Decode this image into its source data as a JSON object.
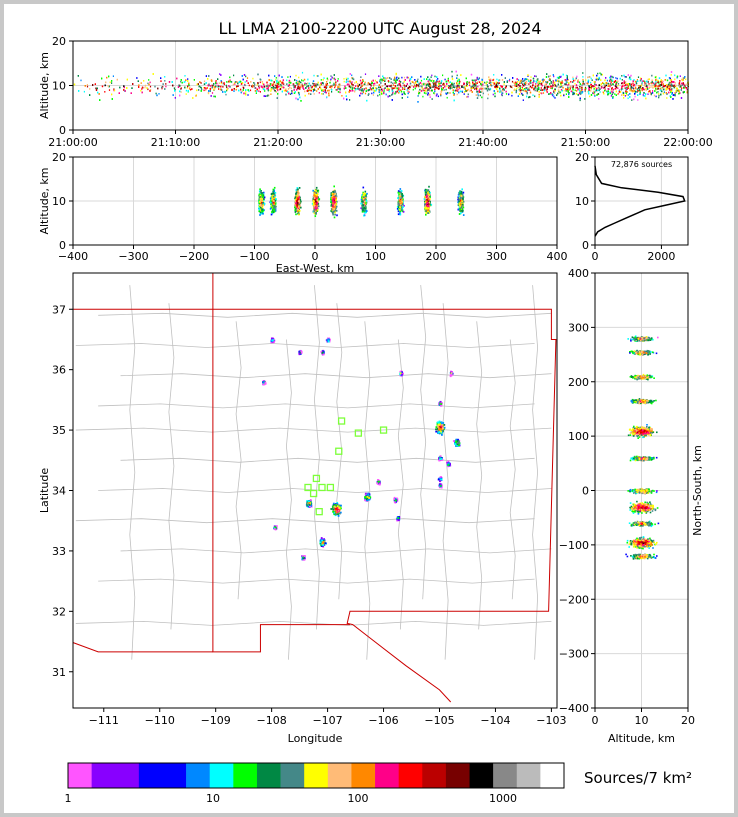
{
  "title": "LL LMA 2100-2200 UTC August 28, 2024",
  "colors": {
    "frame": "#c8c8c8",
    "axis": "#000000",
    "grid": "#d9d9d9",
    "county": "#c0c0c0",
    "state": "#cc0000",
    "station": "#7dff3a"
  },
  "chart_data": [
    {
      "id": "time-height",
      "type": "scatter",
      "ylabel": "Altitude, km",
      "ylim": [
        0,
        20
      ],
      "yticks": [
        "0",
        "10",
        "20"
      ],
      "xticks": [
        "21:00:00",
        "21:10:00",
        "21:20:00",
        "21:30:00",
        "21:40:00",
        "21:50:00",
        "22:00:00"
      ],
      "xlim_minutes": [
        0,
        60
      ],
      "core_altitude_km": [
        5,
        14
      ]
    },
    {
      "id": "ew-height",
      "type": "scatter",
      "xlabel": "East-West, km",
      "ylabel": "Altitude, km",
      "xlim": [
        -400,
        400
      ],
      "ylim": [
        0,
        20
      ],
      "xticks": [
        "−400",
        "−300",
        "−200",
        "−100",
        "0",
        "100",
        "200",
        "300",
        "400"
      ],
      "yticks": [
        "0",
        "10",
        "20"
      ],
      "clusters_ew_km": [
        -90,
        -70,
        -30,
        0,
        30,
        80,
        140,
        185,
        240
      ]
    },
    {
      "id": "altitude-histogram",
      "type": "line",
      "annotation": "72,876 sources",
      "xlim": [
        0,
        2800
      ],
      "ylim": [
        0,
        20
      ],
      "xticks": [
        "0",
        "2000"
      ],
      "yticks": [
        "0",
        "10",
        "20"
      ],
      "profile": [
        [
          0,
          2
        ],
        [
          80,
          3
        ],
        [
          300,
          4
        ],
        [
          600,
          5
        ],
        [
          900,
          6
        ],
        [
          1200,
          7
        ],
        [
          1500,
          8
        ],
        [
          2100,
          9
        ],
        [
          2700,
          10
        ],
        [
          2650,
          11
        ],
        [
          1900,
          12
        ],
        [
          800,
          13
        ],
        [
          200,
          14
        ],
        [
          40,
          16
        ],
        [
          0,
          18
        ]
      ]
    },
    {
      "id": "plan-view",
      "type": "scatter",
      "xlabel": "Longitude",
      "ylabel": "Latitude",
      "xlim": [
        -111.55,
        -102.9
      ],
      "ylim": [
        30.4,
        37.6
      ],
      "xticks": [
        "−111",
        "−110",
        "−109",
        "−108",
        "−107",
        "−106",
        "−105",
        "−104",
        "−103"
      ],
      "yticks": [
        "31",
        "32",
        "33",
        "34",
        "35",
        "36",
        "37"
      ],
      "stations": [
        [
          -107.35,
          34.05
        ],
        [
          -107.2,
          34.2
        ],
        [
          -107.1,
          34.05
        ],
        [
          -107.25,
          33.95
        ],
        [
          -106.95,
          34.05
        ],
        [
          -107.15,
          33.65
        ],
        [
          -106.8,
          34.65
        ],
        [
          -106.75,
          35.15
        ],
        [
          -106.45,
          34.95
        ],
        [
          -106.0,
          35.0
        ]
      ],
      "storms": [
        {
          "lon": -106.85,
          "lat": 33.7,
          "size": 3
        },
        {
          "lon": -107.1,
          "lat": 33.15,
          "size": 2
        },
        {
          "lon": -107.35,
          "lat": 33.8,
          "size": 2
        },
        {
          "lon": -107.45,
          "lat": 32.9,
          "size": 1
        },
        {
          "lon": -106.3,
          "lat": 33.9,
          "size": 2
        },
        {
          "lon": -106.1,
          "lat": 34.15,
          "size": 1
        },
        {
          "lon": -105.8,
          "lat": 33.85,
          "size": 1
        },
        {
          "lon": -105.75,
          "lat": 33.55,
          "size": 1
        },
        {
          "lon": -105.0,
          "lat": 35.05,
          "size": 3
        },
        {
          "lon": -105.0,
          "lat": 34.55,
          "size": 1
        },
        {
          "lon": -104.7,
          "lat": 34.8,
          "size": 2
        },
        {
          "lon": -104.85,
          "lat": 34.45,
          "size": 1
        },
        {
          "lon": -105.0,
          "lat": 34.2,
          "size": 1
        },
        {
          "lon": -105.0,
          "lat": 35.45,
          "size": 1
        },
        {
          "lon": -104.8,
          "lat": 35.95,
          "size": 1
        },
        {
          "lon": -105.7,
          "lat": 35.95,
          "size": 1
        },
        {
          "lon": -107.1,
          "lat": 36.3,
          "size": 1
        },
        {
          "lon": -107.5,
          "lat": 36.3,
          "size": 1
        },
        {
          "lon": -107.0,
          "lat": 36.5,
          "size": 1
        },
        {
          "lon": -108.15,
          "lat": 35.8,
          "size": 1
        },
        {
          "lon": -108.0,
          "lat": 36.5,
          "size": 1
        },
        {
          "lon": -107.95,
          "lat": 33.4,
          "size": 1
        },
        {
          "lon": -105.0,
          "lat": 34.1,
          "size": 1
        }
      ]
    },
    {
      "id": "ns-altitude",
      "type": "scatter",
      "xlabel": "Altitude, km",
      "ylabel": "North-South, km",
      "xlim": [
        0,
        20
      ],
      "ylim": [
        -400,
        400
      ],
      "xticks": [
        "0",
        "10",
        "20"
      ],
      "yticks": [
        "−400",
        "−300",
        "−200",
        "−100",
        "0",
        "100",
        "200",
        "300",
        "400"
      ],
      "clusters_ns_km": [
        -120,
        -95,
        -60,
        -30,
        0,
        60,
        110,
        165,
        210,
        255,
        280
      ]
    }
  ],
  "colorbar": {
    "label": "Sources/7 km²",
    "ticks": [
      "1",
      "10",
      "100",
      "1000"
    ],
    "colors": [
      "#ff55ff",
      "#8800ff",
      "#8800ff",
      "#0000ff",
      "#0000ff",
      "#0088ff",
      "#00ffff",
      "#00ff00",
      "#008844",
      "#448888",
      "#ffff00",
      "#ffbb77",
      "#ff8800",
      "#ff0088",
      "#ff0000",
      "#bb0000",
      "#770000",
      "#000000",
      "#888888",
      "#bbbbbb",
      "#ffffff"
    ]
  }
}
